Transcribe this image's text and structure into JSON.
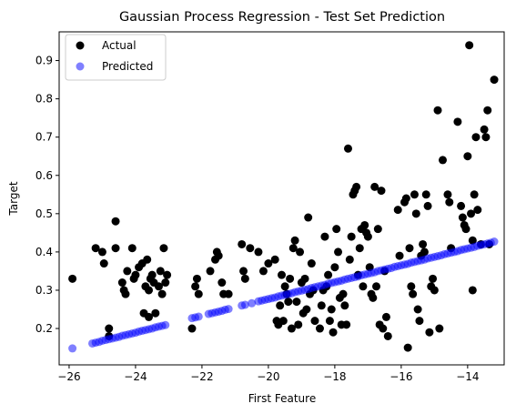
{
  "chart_data": {
    "type": "scatter",
    "title": "Gaussian Process Regression - Test Set Prediction",
    "xlabel": "First Feature",
    "ylabel": "Target",
    "xlim": [
      -26.3,
      -12.9
    ],
    "ylim": [
      0.105,
      0.975
    ],
    "xticks": [
      -26,
      -24,
      -22,
      -20,
      -18,
      -16,
      -14
    ],
    "xtick_labels": [
      "−26",
      "−24",
      "−22",
      "−20",
      "−18",
      "−16",
      "−14"
    ],
    "yticks": [
      0.2,
      0.3,
      0.4,
      0.5,
      0.6,
      0.7,
      0.8,
      0.9
    ],
    "ytick_labels": [
      "0.2",
      "0.3",
      "0.4",
      "0.5",
      "0.6",
      "0.7",
      "0.8",
      "0.9"
    ],
    "grid": false,
    "legend": {
      "position": "top-left",
      "entries": [
        {
          "label": "Actual",
          "color": "#000000"
        },
        {
          "label": "Predicted",
          "color": "#0000ff"
        }
      ]
    },
    "series": [
      {
        "name": "Actual",
        "color": "#000000",
        "alpha": 1.0,
        "points": [
          [
            -25.9,
            0.33
          ],
          [
            -25.2,
            0.41
          ],
          [
            -25.0,
            0.4
          ],
          [
            -24.95,
            0.37
          ],
          [
            -24.8,
            0.18
          ],
          [
            -24.8,
            0.2
          ],
          [
            -24.6,
            0.48
          ],
          [
            -24.6,
            0.41
          ],
          [
            -24.4,
            0.32
          ],
          [
            -24.35,
            0.3
          ],
          [
            -24.3,
            0.29
          ],
          [
            -24.25,
            0.35
          ],
          [
            -24.1,
            0.41
          ],
          [
            -24.05,
            0.33
          ],
          [
            -24.0,
            0.34
          ],
          [
            -23.9,
            0.36
          ],
          [
            -23.8,
            0.37
          ],
          [
            -23.75,
            0.24
          ],
          [
            -23.7,
            0.31
          ],
          [
            -23.65,
            0.38
          ],
          [
            -23.6,
            0.23
          ],
          [
            -23.6,
            0.3
          ],
          [
            -23.55,
            0.33
          ],
          [
            -23.5,
            0.34
          ],
          [
            -23.45,
            0.32
          ],
          [
            -23.4,
            0.24
          ],
          [
            -23.3,
            0.31
          ],
          [
            -23.25,
            0.35
          ],
          [
            -23.2,
            0.29
          ],
          [
            -23.15,
            0.41
          ],
          [
            -23.1,
            0.32
          ],
          [
            -23.05,
            0.34
          ],
          [
            -22.3,
            0.2
          ],
          [
            -22.2,
            0.31
          ],
          [
            -22.15,
            0.33
          ],
          [
            -22.1,
            0.29
          ],
          [
            -21.75,
            0.35
          ],
          [
            -21.6,
            0.38
          ],
          [
            -21.55,
            0.4
          ],
          [
            -21.5,
            0.39
          ],
          [
            -21.4,
            0.32
          ],
          [
            -21.35,
            0.29
          ],
          [
            -21.2,
            0.29
          ],
          [
            -20.8,
            0.42
          ],
          [
            -20.75,
            0.35
          ],
          [
            -20.7,
            0.33
          ],
          [
            -20.55,
            0.41
          ],
          [
            -20.3,
            0.4
          ],
          [
            -20.15,
            0.35
          ],
          [
            -20.0,
            0.37
          ],
          [
            -19.8,
            0.38
          ],
          [
            -19.75,
            0.22
          ],
          [
            -19.7,
            0.21
          ],
          [
            -19.65,
            0.26
          ],
          [
            -19.6,
            0.34
          ],
          [
            -19.55,
            0.22
          ],
          [
            -19.5,
            0.31
          ],
          [
            -19.45,
            0.29
          ],
          [
            -19.4,
            0.27
          ],
          [
            -19.35,
            0.33
          ],
          [
            -19.3,
            0.2
          ],
          [
            -19.25,
            0.41
          ],
          [
            -19.2,
            0.43
          ],
          [
            -19.15,
            0.27
          ],
          [
            -19.1,
            0.21
          ],
          [
            -19.05,
            0.4
          ],
          [
            -19.0,
            0.32
          ],
          [
            -18.95,
            0.24
          ],
          [
            -18.9,
            0.33
          ],
          [
            -18.85,
            0.25
          ],
          [
            -18.8,
            0.49
          ],
          [
            -18.75,
            0.29
          ],
          [
            -18.7,
            0.37
          ],
          [
            -18.65,
            0.3
          ],
          [
            -18.6,
            0.22
          ],
          [
            -18.45,
            0.2
          ],
          [
            -18.4,
            0.26
          ],
          [
            -18.35,
            0.3
          ],
          [
            -18.3,
            0.44
          ],
          [
            -18.25,
            0.31
          ],
          [
            -18.2,
            0.34
          ],
          [
            -18.15,
            0.22
          ],
          [
            -18.1,
            0.25
          ],
          [
            -18.05,
            0.19
          ],
          [
            -18.0,
            0.36
          ],
          [
            -17.95,
            0.46
          ],
          [
            -17.9,
            0.4
          ],
          [
            -17.85,
            0.28
          ],
          [
            -17.8,
            0.21
          ],
          [
            -17.75,
            0.29
          ],
          [
            -17.7,
            0.26
          ],
          [
            -17.65,
            0.21
          ],
          [
            -17.6,
            0.67
          ],
          [
            -17.55,
            0.38
          ],
          [
            -17.5,
            0.44
          ],
          [
            -17.45,
            0.55
          ],
          [
            -17.4,
            0.56
          ],
          [
            -17.35,
            0.57
          ],
          [
            -17.3,
            0.34
          ],
          [
            -17.25,
            0.41
          ],
          [
            -17.2,
            0.46
          ],
          [
            -17.15,
            0.31
          ],
          [
            -17.1,
            0.47
          ],
          [
            -17.05,
            0.45
          ],
          [
            -17.0,
            0.44
          ],
          [
            -16.95,
            0.36
          ],
          [
            -16.9,
            0.29
          ],
          [
            -16.85,
            0.28
          ],
          [
            -16.8,
            0.57
          ],
          [
            -16.75,
            0.31
          ],
          [
            -16.7,
            0.46
          ],
          [
            -16.65,
            0.21
          ],
          [
            -16.6,
            0.56
          ],
          [
            -16.55,
            0.2
          ],
          [
            -16.5,
            0.35
          ],
          [
            -16.45,
            0.23
          ],
          [
            -16.4,
            0.18
          ],
          [
            -16.1,
            0.51
          ],
          [
            -16.05,
            0.39
          ],
          [
            -15.9,
            0.53
          ],
          [
            -15.85,
            0.54
          ],
          [
            -15.8,
            0.15
          ],
          [
            -15.75,
            0.41
          ],
          [
            -15.7,
            0.31
          ],
          [
            -15.65,
            0.29
          ],
          [
            -15.6,
            0.55
          ],
          [
            -15.55,
            0.5
          ],
          [
            -15.5,
            0.25
          ],
          [
            -15.45,
            0.22
          ],
          [
            -15.4,
            0.39
          ],
          [
            -15.35,
            0.42
          ],
          [
            -15.3,
            0.4
          ],
          [
            -15.25,
            0.55
          ],
          [
            -15.2,
            0.52
          ],
          [
            -15.15,
            0.19
          ],
          [
            -15.1,
            0.31
          ],
          [
            -15.05,
            0.33
          ],
          [
            -15.0,
            0.3
          ],
          [
            -14.9,
            0.77
          ],
          [
            -14.85,
            0.2
          ],
          [
            -14.75,
            0.64
          ],
          [
            -14.6,
            0.55
          ],
          [
            -14.55,
            0.53
          ],
          [
            -14.5,
            0.41
          ],
          [
            -14.3,
            0.74
          ],
          [
            -14.2,
            0.52
          ],
          [
            -14.15,
            0.49
          ],
          [
            -14.1,
            0.47
          ],
          [
            -14.05,
            0.46
          ],
          [
            -14.0,
            0.65
          ],
          [
            -13.95,
            0.94
          ],
          [
            -13.9,
            0.5
          ],
          [
            -13.85,
            0.43
          ],
          [
            -13.8,
            0.55
          ],
          [
            -13.75,
            0.7
          ],
          [
            -13.7,
            0.51
          ],
          [
            -13.85,
            0.3
          ],
          [
            -13.6,
            0.42
          ],
          [
            -13.5,
            0.72
          ],
          [
            -13.45,
            0.7
          ],
          [
            -13.4,
            0.77
          ],
          [
            -13.35,
            0.42
          ],
          [
            -13.2,
            0.85
          ]
        ]
      },
      {
        "name": "Predicted",
        "color": "#0000ff",
        "alpha": 0.5,
        "points": [
          [
            -25.9,
            0.148
          ],
          [
            -25.3,
            0.161
          ],
          [
            -25.2,
            0.163
          ],
          [
            -25.1,
            0.165
          ],
          [
            -25.0,
            0.168
          ],
          [
            -24.9,
            0.17
          ],
          [
            -24.8,
            0.172
          ],
          [
            -24.7,
            0.174
          ],
          [
            -24.6,
            0.176
          ],
          [
            -24.5,
            0.178
          ],
          [
            -24.4,
            0.181
          ],
          [
            -24.3,
            0.183
          ],
          [
            -24.2,
            0.185
          ],
          [
            -24.1,
            0.187
          ],
          [
            -24.0,
            0.189
          ],
          [
            -23.9,
            0.192
          ],
          [
            -23.8,
            0.194
          ],
          [
            -23.7,
            0.196
          ],
          [
            -23.6,
            0.198
          ],
          [
            -23.5,
            0.2
          ],
          [
            -23.4,
            0.203
          ],
          [
            -23.3,
            0.205
          ],
          [
            -23.2,
            0.207
          ],
          [
            -23.1,
            0.209
          ],
          [
            -22.3,
            0.227
          ],
          [
            -22.2,
            0.229
          ],
          [
            -22.1,
            0.231
          ],
          [
            -21.8,
            0.238
          ],
          [
            -21.7,
            0.24
          ],
          [
            -21.6,
            0.242
          ],
          [
            -21.5,
            0.244
          ],
          [
            -21.4,
            0.246
          ],
          [
            -21.3,
            0.249
          ],
          [
            -21.2,
            0.251
          ],
          [
            -20.8,
            0.26
          ],
          [
            -20.7,
            0.262
          ],
          [
            -20.5,
            0.266
          ],
          [
            -20.3,
            0.271
          ],
          [
            -20.2,
            0.273
          ],
          [
            -20.1,
            0.275
          ],
          [
            -20.0,
            0.277
          ],
          [
            -19.9,
            0.279
          ],
          [
            -19.8,
            0.281
          ],
          [
            -19.7,
            0.284
          ],
          [
            -19.6,
            0.286
          ],
          [
            -19.5,
            0.288
          ],
          [
            -19.4,
            0.29
          ],
          [
            -19.3,
            0.292
          ],
          [
            -19.2,
            0.295
          ],
          [
            -19.1,
            0.297
          ],
          [
            -19.0,
            0.299
          ],
          [
            -18.9,
            0.301
          ],
          [
            -18.8,
            0.303
          ],
          [
            -18.7,
            0.306
          ],
          [
            -18.6,
            0.308
          ],
          [
            -18.5,
            0.31
          ],
          [
            -18.4,
            0.312
          ],
          [
            -18.3,
            0.314
          ],
          [
            -18.2,
            0.317
          ],
          [
            -18.1,
            0.319
          ],
          [
            -18.0,
            0.321
          ],
          [
            -17.9,
            0.323
          ],
          [
            -17.8,
            0.325
          ],
          [
            -17.7,
            0.328
          ],
          [
            -17.6,
            0.33
          ],
          [
            -17.5,
            0.332
          ],
          [
            -17.4,
            0.334
          ],
          [
            -17.3,
            0.336
          ],
          [
            -17.2,
            0.339
          ],
          [
            -17.1,
            0.341
          ],
          [
            -17.0,
            0.343
          ],
          [
            -16.9,
            0.345
          ],
          [
            -16.8,
            0.347
          ],
          [
            -16.7,
            0.35
          ],
          [
            -16.6,
            0.352
          ],
          [
            -16.5,
            0.354
          ],
          [
            -16.4,
            0.356
          ],
          [
            -16.3,
            0.358
          ],
          [
            -16.2,
            0.361
          ],
          [
            -16.1,
            0.363
          ],
          [
            -16.0,
            0.365
          ],
          [
            -15.9,
            0.367
          ],
          [
            -15.8,
            0.369
          ],
          [
            -15.7,
            0.372
          ],
          [
            -15.6,
            0.374
          ],
          [
            -15.5,
            0.376
          ],
          [
            -15.4,
            0.378
          ],
          [
            -15.3,
            0.38
          ],
          [
            -15.2,
            0.383
          ],
          [
            -15.1,
            0.385
          ],
          [
            -15.0,
            0.387
          ],
          [
            -14.9,
            0.389
          ],
          [
            -14.8,
            0.391
          ],
          [
            -14.7,
            0.394
          ],
          [
            -14.6,
            0.396
          ],
          [
            -14.5,
            0.398
          ],
          [
            -14.4,
            0.4
          ],
          [
            -14.3,
            0.402
          ],
          [
            -14.2,
            0.405
          ],
          [
            -14.1,
            0.407
          ],
          [
            -14.0,
            0.409
          ],
          [
            -13.9,
            0.411
          ],
          [
            -13.8,
            0.413
          ],
          [
            -13.7,
            0.416
          ],
          [
            -13.6,
            0.418
          ],
          [
            -13.5,
            0.42
          ],
          [
            -13.4,
            0.422
          ],
          [
            -13.3,
            0.424
          ],
          [
            -13.2,
            0.427
          ]
        ]
      }
    ]
  }
}
